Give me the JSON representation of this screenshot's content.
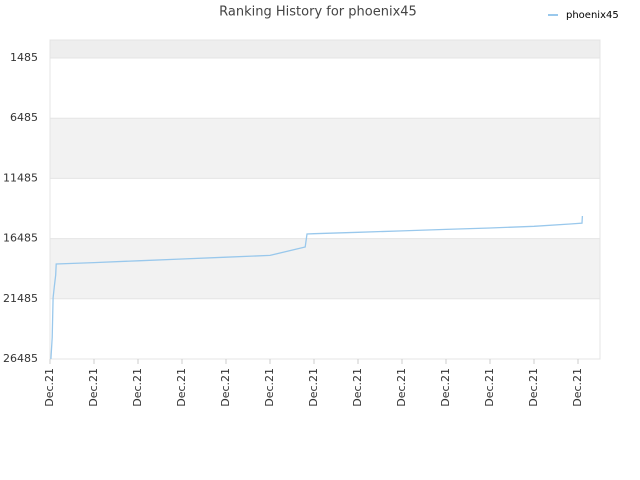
{
  "chart_data": {
    "type": "line",
    "title": "Ranking History for phoenix45",
    "x": [
      0.02,
      0.05,
      0.07,
      0.1,
      0.13,
      0.14,
      1,
      2,
      3,
      4,
      5,
      5.8,
      5.84,
      6,
      7,
      8,
      9,
      10,
      11,
      11.82,
      12.09,
      12.1
    ],
    "series": [
      {
        "name": "phoenix45",
        "color": "#99c8ec",
        "values": [
          26485,
          24700,
          21400,
          20400,
          19500,
          18595,
          18480,
          18330,
          18180,
          18030,
          17880,
          17183,
          16103,
          16080,
          15960,
          15840,
          15720,
          15600,
          15460,
          15272,
          15200,
          14608
        ]
      }
    ],
    "xlim": [
      0,
      12.5
    ],
    "xticks": [
      {
        "value": 0,
        "label": "Dec.21"
      },
      {
        "value": 1,
        "label": "Dec.21"
      },
      {
        "value": 2,
        "label": "Dec.21"
      },
      {
        "value": 3,
        "label": "Dec.21"
      },
      {
        "value": 4,
        "label": "Dec.21"
      },
      {
        "value": 5,
        "label": "Dec.21"
      },
      {
        "value": 6,
        "label": "Dec.21"
      },
      {
        "value": 7,
        "label": "Dec.21"
      },
      {
        "value": 8,
        "label": "Dec.21"
      },
      {
        "value": 9,
        "label": "Dec.21"
      },
      {
        "value": 10,
        "label": "Dec.21"
      },
      {
        "value": 11,
        "label": "Dec.21"
      },
      {
        "value": 12,
        "label": "Dec.21"
      }
    ],
    "ylim": [
      -15,
      26485
    ],
    "y_inverted": true,
    "yticks": [
      1485,
      6485,
      11485,
      16485,
      21485,
      26485
    ],
    "legend": "top-right"
  }
}
